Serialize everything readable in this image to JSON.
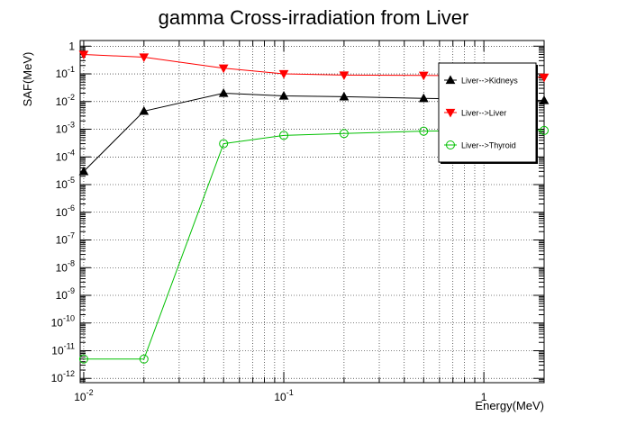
{
  "chart_data": {
    "type": "line",
    "title": "gamma Cross-irradiation from Liver",
    "xlabel": "Energy(MeV)",
    "ylabel": "SAF(MeV)",
    "x_scale": "log",
    "y_scale": "log",
    "xlim": [
      0.0096,
      2.0
    ],
    "ylim": [
      7e-13,
      1.6
    ],
    "grid": true,
    "legend_position": "top-right",
    "x_ticks": [
      {
        "value": 0.01,
        "base": "10",
        "exp": "-2"
      },
      {
        "value": 0.1,
        "base": "10",
        "exp": "-1"
      },
      {
        "value": 1,
        "base": "1",
        "exp": ""
      }
    ],
    "y_ticks": [
      {
        "value": 1,
        "base": "1",
        "exp": ""
      },
      {
        "value": 0.1,
        "base": "10",
        "exp": "-1"
      },
      {
        "value": 0.01,
        "base": "10",
        "exp": "-2"
      },
      {
        "value": 0.001,
        "base": "10",
        "exp": "-3"
      },
      {
        "value": 0.0001,
        "base": "10",
        "exp": "-4"
      },
      {
        "value": 1e-05,
        "base": "10",
        "exp": "-5"
      },
      {
        "value": 1e-06,
        "base": "10",
        "exp": "-6"
      },
      {
        "value": 1e-07,
        "base": "10",
        "exp": "-7"
      },
      {
        "value": 1e-08,
        "base": "10",
        "exp": "-8"
      },
      {
        "value": 1e-09,
        "base": "10",
        "exp": "-9"
      },
      {
        "value": 1e-10,
        "base": "10",
        "exp": "-10"
      },
      {
        "value": 1e-11,
        "base": "10",
        "exp": "-11"
      },
      {
        "value": 1e-12,
        "base": "10",
        "exp": "-12"
      }
    ],
    "series": [
      {
        "name": "Liver-->Kidneys",
        "color": "#000000",
        "marker": "triangle-up",
        "x": [
          0.01,
          0.02,
          0.05,
          0.1,
          0.2,
          0.5,
          1,
          2
        ],
        "y": [
          3e-05,
          0.0045,
          0.02,
          0.016,
          0.015,
          0.013,
          0.012,
          0.011
        ]
      },
      {
        "name": "Liver-->Liver",
        "color": "#ff0000",
        "marker": "triangle-down",
        "x": [
          0.01,
          0.02,
          0.05,
          0.1,
          0.2,
          0.5,
          1,
          2
        ],
        "y": [
          0.5,
          0.4,
          0.16,
          0.1,
          0.09,
          0.088,
          0.085,
          0.075
        ]
      },
      {
        "name": "Liver-->Thyroid",
        "color": "#00c000",
        "marker": "circle-open",
        "x": [
          0.01,
          0.02,
          0.05,
          0.1,
          0.2,
          0.5,
          1,
          2
        ],
        "y": [
          5e-12,
          5e-12,
          0.0003,
          0.0006,
          0.0007,
          0.00085,
          0.0009,
          0.0009
        ]
      }
    ]
  }
}
